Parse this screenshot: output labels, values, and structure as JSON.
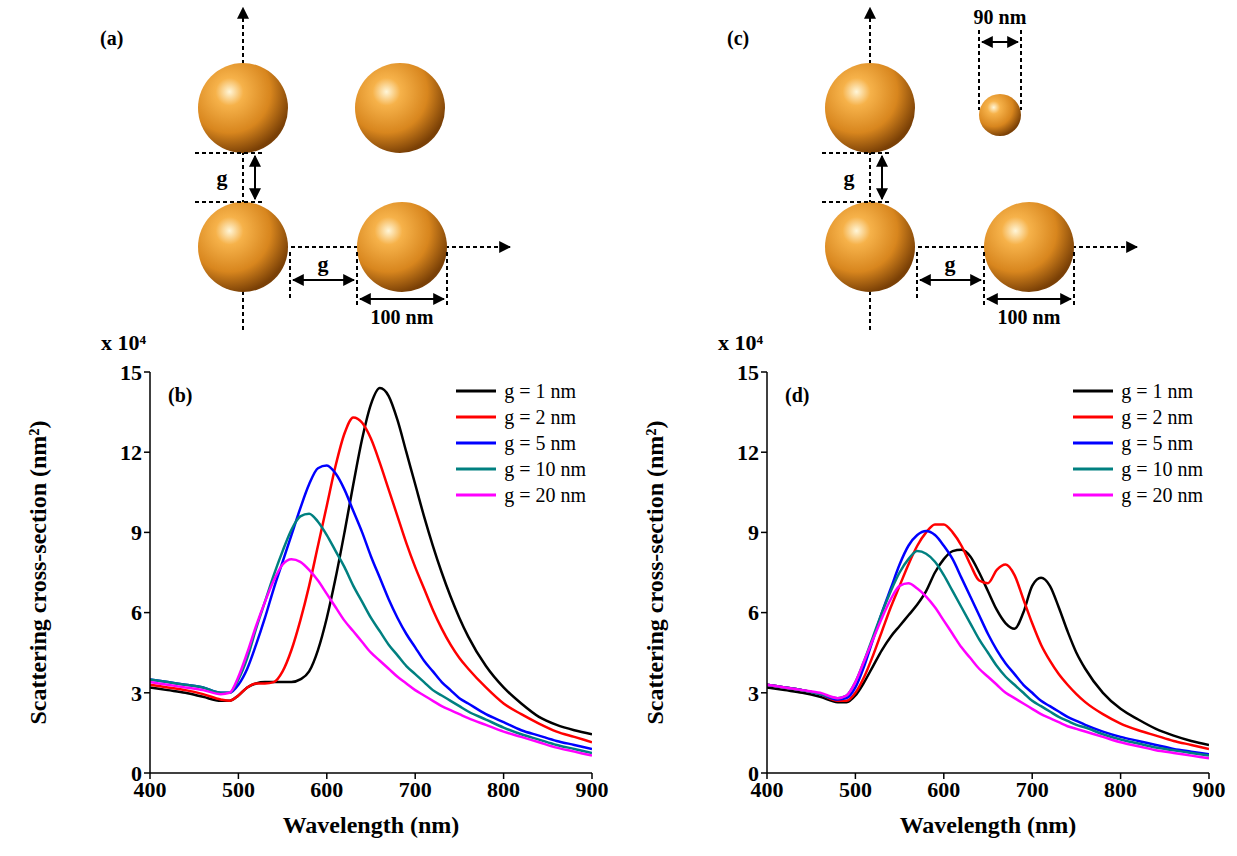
{
  "diagrams": [
    {
      "label": "(a)",
      "gap_label": "g",
      "diameter_label": "100 nm"
    },
    {
      "label": "(c)",
      "gap_label": "g",
      "diameter_label": "100 nm",
      "small_diameter_label": "90 nm"
    }
  ],
  "chart_data": [
    {
      "type": "line",
      "panel": "(b)",
      "axis_multiplier": "x 10⁴",
      "xlabel": "Wavelength (nm)",
      "ylabel": "Scattering cross-section (nm²)",
      "x": [
        400,
        420,
        440,
        460,
        480,
        490,
        500,
        510,
        520,
        530,
        540,
        550,
        560,
        570,
        580,
        590,
        600,
        610,
        620,
        630,
        640,
        650,
        660,
        670,
        680,
        690,
        700,
        710,
        720,
        730,
        740,
        750,
        760,
        780,
        800,
        820,
        840,
        860,
        880,
        900
      ],
      "xlim": [
        400,
        900
      ],
      "xticks": [
        400,
        500,
        600,
        700,
        800,
        900
      ],
      "ylim": [
        0,
        15
      ],
      "yticks": [
        0,
        3,
        6,
        9,
        12,
        15
      ],
      "grid": false,
      "legend": "upper right",
      "series": [
        {
          "name": "g = 1 nm",
          "color": "#000000",
          "values": [
            3.2,
            3.1,
            3.0,
            2.85,
            2.7,
            2.7,
            2.9,
            3.2,
            3.35,
            3.4,
            3.4,
            3.4,
            3.4,
            3.5,
            3.8,
            4.6,
            5.8,
            7.3,
            9.0,
            10.8,
            12.5,
            13.8,
            14.4,
            14.1,
            13.2,
            12.0,
            10.8,
            9.6,
            8.5,
            7.5,
            6.6,
            5.8,
            5.1,
            4.0,
            3.2,
            2.6,
            2.1,
            1.8,
            1.6,
            1.45
          ]
        },
        {
          "name": "g = 2 nm",
          "color": "#ff0000",
          "values": [
            3.3,
            3.2,
            3.1,
            2.95,
            2.75,
            2.7,
            2.9,
            3.2,
            3.35,
            3.35,
            3.4,
            3.8,
            4.6,
            5.7,
            7.0,
            8.5,
            10.0,
            11.5,
            12.7,
            13.3,
            13.1,
            12.5,
            11.6,
            10.6,
            9.6,
            8.6,
            7.7,
            6.9,
            6.1,
            5.4,
            4.8,
            4.3,
            3.9,
            3.2,
            2.6,
            2.2,
            1.85,
            1.55,
            1.35,
            1.15
          ]
        },
        {
          "name": "g = 5 nm",
          "color": "#0000ff",
          "values": [
            3.5,
            3.4,
            3.3,
            3.2,
            3.0,
            3.0,
            3.3,
            3.9,
            4.8,
            5.8,
            6.9,
            7.9,
            8.9,
            9.9,
            10.8,
            11.4,
            11.5,
            11.2,
            10.6,
            9.8,
            9.0,
            8.1,
            7.3,
            6.5,
            5.8,
            5.2,
            4.7,
            4.2,
            3.8,
            3.4,
            3.1,
            2.8,
            2.6,
            2.2,
            1.9,
            1.6,
            1.4,
            1.2,
            1.05,
            0.9
          ]
        },
        {
          "name": "g = 10 nm",
          "color": "#008080",
          "values": [
            3.5,
            3.4,
            3.3,
            3.2,
            3.0,
            3.0,
            3.5,
            4.3,
            5.4,
            6.4,
            7.4,
            8.3,
            9.1,
            9.6,
            9.7,
            9.4,
            8.9,
            8.3,
            7.7,
            7.0,
            6.4,
            5.8,
            5.3,
            4.8,
            4.4,
            4.0,
            3.7,
            3.4,
            3.1,
            2.9,
            2.7,
            2.5,
            2.3,
            2.0,
            1.7,
            1.45,
            1.25,
            1.05,
            0.9,
            0.75
          ]
        },
        {
          "name": "g = 20 nm",
          "color": "#ff00ff",
          "values": [
            3.4,
            3.3,
            3.2,
            3.1,
            2.95,
            3.0,
            3.6,
            4.5,
            5.5,
            6.4,
            7.2,
            7.8,
            8.0,
            7.9,
            7.6,
            7.2,
            6.7,
            6.2,
            5.7,
            5.3,
            4.9,
            4.5,
            4.2,
            3.9,
            3.6,
            3.35,
            3.1,
            2.9,
            2.7,
            2.5,
            2.35,
            2.2,
            2.05,
            1.8,
            1.55,
            1.35,
            1.15,
            0.95,
            0.8,
            0.65
          ]
        }
      ]
    },
    {
      "type": "line",
      "panel": "(d)",
      "axis_multiplier": "x 10⁴",
      "xlabel": "Wavelength (nm)",
      "ylabel": "Scattering cross-section (nm²)",
      "x": [
        400,
        420,
        440,
        460,
        480,
        490,
        500,
        510,
        520,
        530,
        540,
        550,
        560,
        570,
        580,
        590,
        600,
        610,
        620,
        630,
        640,
        650,
        660,
        670,
        680,
        690,
        700,
        710,
        720,
        730,
        740,
        750,
        760,
        780,
        800,
        820,
        840,
        860,
        880,
        900
      ],
      "xlim": [
        400,
        900
      ],
      "xticks": [
        400,
        500,
        600,
        700,
        800,
        900
      ],
      "ylim": [
        0,
        15
      ],
      "yticks": [
        0,
        3,
        6,
        9,
        12,
        15
      ],
      "grid": false,
      "legend": "upper right",
      "series": [
        {
          "name": "g = 1 nm",
          "color": "#000000",
          "values": [
            3.2,
            3.1,
            3.0,
            2.85,
            2.65,
            2.65,
            2.9,
            3.4,
            4.0,
            4.6,
            5.1,
            5.5,
            5.9,
            6.3,
            6.8,
            7.5,
            8.0,
            8.3,
            8.35,
            8.1,
            7.5,
            6.8,
            6.1,
            5.6,
            5.4,
            6.0,
            7.0,
            7.3,
            7.0,
            6.2,
            5.3,
            4.5,
            3.9,
            3.0,
            2.4,
            2.0,
            1.65,
            1.4,
            1.2,
            1.05
          ]
        },
        {
          "name": "g = 2 nm",
          "color": "#ff0000",
          "values": [
            3.3,
            3.2,
            3.1,
            2.95,
            2.7,
            2.7,
            3.0,
            3.6,
            4.4,
            5.3,
            6.2,
            7.0,
            7.8,
            8.5,
            9.0,
            9.3,
            9.3,
            9.0,
            8.5,
            7.8,
            7.2,
            7.1,
            7.6,
            7.8,
            7.4,
            6.5,
            5.6,
            4.8,
            4.2,
            3.7,
            3.3,
            2.95,
            2.65,
            2.2,
            1.85,
            1.6,
            1.4,
            1.2,
            1.05,
            0.9
          ]
        },
        {
          "name": "g = 5 nm",
          "color": "#0000ff",
          "values": [
            3.3,
            3.2,
            3.1,
            2.95,
            2.75,
            2.8,
            3.2,
            4.0,
            5.0,
            6.0,
            6.9,
            7.8,
            8.5,
            8.9,
            9.05,
            8.9,
            8.5,
            8.0,
            7.3,
            6.6,
            5.9,
            5.2,
            4.6,
            4.1,
            3.7,
            3.3,
            3.0,
            2.7,
            2.5,
            2.3,
            2.1,
            1.95,
            1.8,
            1.55,
            1.35,
            1.2,
            1.05,
            0.9,
            0.8,
            0.7
          ]
        },
        {
          "name": "g = 10 nm",
          "color": "#008080",
          "values": [
            3.3,
            3.2,
            3.1,
            2.95,
            2.8,
            2.9,
            3.4,
            4.2,
            5.1,
            6.0,
            6.8,
            7.5,
            8.0,
            8.3,
            8.2,
            7.9,
            7.4,
            6.8,
            6.2,
            5.6,
            5.0,
            4.5,
            4.0,
            3.6,
            3.3,
            3.0,
            2.7,
            2.5,
            2.3,
            2.1,
            1.95,
            1.8,
            1.7,
            1.45,
            1.25,
            1.1,
            0.95,
            0.85,
            0.75,
            0.65
          ]
        },
        {
          "name": "g = 20 nm",
          "color": "#ff00ff",
          "values": [
            3.3,
            3.2,
            3.1,
            3.0,
            2.8,
            2.9,
            3.4,
            4.2,
            5.0,
            5.8,
            6.5,
            7.0,
            7.1,
            6.9,
            6.6,
            6.2,
            5.7,
            5.2,
            4.7,
            4.3,
            3.9,
            3.6,
            3.3,
            3.0,
            2.8,
            2.6,
            2.4,
            2.2,
            2.05,
            1.9,
            1.75,
            1.65,
            1.55,
            1.35,
            1.15,
            1.0,
            0.85,
            0.75,
            0.65,
            0.55
          ]
        }
      ]
    }
  ]
}
